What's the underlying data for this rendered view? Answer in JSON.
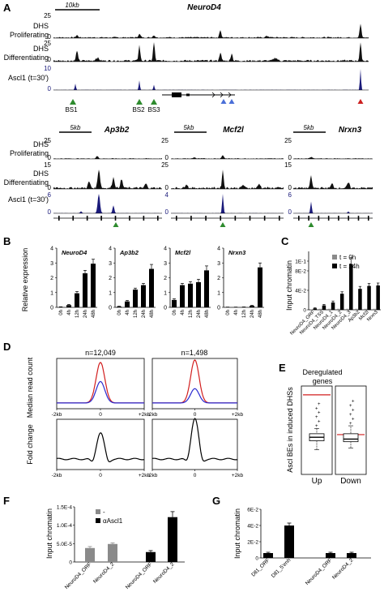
{
  "panels": {
    "A": {
      "letter": "A",
      "top": {
        "gene": "NeuroD4",
        "scalebar": "10kb",
        "tracks": [
          {
            "label1": "DHS",
            "label2": "Proliferating",
            "max": "25",
            "min": "0"
          },
          {
            "label1": "DHS",
            "label2": "Differentiating",
            "max": "25",
            "min": "0"
          },
          {
            "label1": "Ascl1 (t=30')",
            "label2": "",
            "max": "10",
            "min": "0"
          }
        ],
        "sites": [
          "BS1",
          "BS2",
          "BS3"
        ]
      },
      "bottom": [
        {
          "gene": "Ap3b2",
          "scalebar": "5kb",
          "maxes": [
            "25",
            "15",
            "6"
          ]
        },
        {
          "gene": "Mcf2l",
          "scalebar": "5kb",
          "maxes": [
            "25",
            "25",
            "4"
          ]
        },
        {
          "gene": "Nrxn3",
          "scalebar": "5kb",
          "maxes": [
            "25",
            "15",
            "6"
          ]
        }
      ],
      "bottom_labels": [
        {
          "label1": "DHS",
          "label2": "Proliferating"
        },
        {
          "label1": "DHS",
          "label2": "Differentiating"
        },
        {
          "label1": "Ascl1 (t=30')",
          "label2": ""
        }
      ],
      "zero": "0"
    },
    "B": {
      "letter": "B",
      "ylabel": "Relative expression",
      "time_labels": [
        "0h",
        "4h",
        "12h",
        "24h",
        "48h"
      ]
    },
    "C": {
      "letter": "C",
      "ylabel": "Input  chromatin"
    },
    "D": {
      "letter": "D",
      "ylabel_top": "Median read count",
      "ylabel_bottom": "Fold change",
      "n_labels": [
        "n=12,049",
        "n=1,498"
      ],
      "x_ticks": [
        "-2kb",
        "0",
        "+2kb"
      ]
    },
    "E": {
      "letter": "E",
      "title": [
        "Deregulated",
        "genes"
      ],
      "ylabel": "Ascl BEs in induced DHSs",
      "categories": [
        "Up",
        "Down"
      ]
    },
    "F": {
      "letter": "F",
      "ylabel": "Input  chromatin"
    },
    "G": {
      "letter": "G",
      "ylabel": "Input  chromatin"
    }
  },
  "colors": {
    "track": "#111111",
    "ascl_track": "#1a1a7a",
    "gray_bar": "#8a8a8a",
    "black_bar": "#000000",
    "red": "#d21f1f",
    "blue": "#2a2ad0",
    "green_marker": "#2e8b2e",
    "blue_marker": "#4a6fd8",
    "red_marker": "#cc2020"
  },
  "chart_data": [
    {
      "panel": "B",
      "type": "bar",
      "subplots": [
        {
          "name": "NeuroD4",
          "yticks": [
            "0",
            "1",
            "2",
            "3",
            "4"
          ],
          "ylim": [
            0,
            4
          ],
          "categories": [
            "0h",
            "4h",
            "12h",
            "24h",
            "48h"
          ],
          "values": [
            0.02,
            0.15,
            0.95,
            2.3,
            2.95
          ],
          "errors": [
            0.02,
            0.05,
            0.12,
            0.2,
            0.3
          ]
        },
        {
          "name": "Ap3b2",
          "yticks": [
            "0",
            "1",
            "2",
            "3",
            "4"
          ],
          "ylim": [
            0,
            4
          ],
          "categories": [
            "0h",
            "4h",
            "12h",
            "24h",
            "48h"
          ],
          "values": [
            0.05,
            0.4,
            1.2,
            1.5,
            2.6
          ],
          "errors": [
            0.03,
            0.07,
            0.1,
            0.12,
            0.3
          ]
        },
        {
          "name": "Mcf2l",
          "yticks": [
            "0",
            "1",
            "2",
            "3",
            "4"
          ],
          "ylim": [
            0,
            4
          ],
          "categories": [
            "0h",
            "4h",
            "12h",
            "24h",
            "48h"
          ],
          "values": [
            0.5,
            1.5,
            1.6,
            1.7,
            2.5
          ],
          "errors": [
            0.08,
            0.12,
            0.14,
            0.2,
            0.3
          ]
        },
        {
          "name": "Nrxn3",
          "yticks": [
            "0",
            "1",
            "2",
            "3",
            "4"
          ],
          "ylim": [
            0,
            4
          ],
          "categories": [
            "0h",
            "4h",
            "12h",
            "24h",
            "48h"
          ],
          "values": [
            0.01,
            0.01,
            0.02,
            0.1,
            2.7
          ],
          "errors": [
            0.01,
            0.01,
            0.01,
            0.04,
            0.3
          ]
        }
      ]
    },
    {
      "panel": "C",
      "type": "bar",
      "yticks": [
        "0",
        "4E-2",
        "8E-2",
        "1E-1"
      ],
      "ylim": [
        0,
        0.12
      ],
      "categories": [
        "NeuroD4_ORF",
        "NeuroD4_TSS",
        "NeuroD4_1",
        "NeuroD4_2",
        "NeuroD4_3",
        "Ap3b2",
        "Mcf2l",
        "Nrxn3"
      ],
      "series": [
        {
          "name": "t = 0h",
          "values": [
            0.001,
            0.002,
            0.002,
            0.002,
            0.002,
            0.002,
            0.002,
            0.002
          ]
        },
        {
          "name": "t = 24h",
          "values": [
            0.003,
            0.009,
            0.015,
            0.033,
            0.094,
            0.043,
            0.049,
            0.05
          ],
          "errors": [
            0.001,
            0.002,
            0.003,
            0.004,
            0.013,
            0.005,
            0.005,
            0.005
          ]
        }
      ],
      "legend": "top-right"
    },
    {
      "panel": "D",
      "type": "line",
      "subplots": [
        {
          "n": "n=12,049",
          "x": [
            -2,
            2
          ],
          "series": [
            {
              "color": "red",
              "shape": "peak",
              "peak": 0.85
            },
            {
              "color": "blue",
              "shape": "peak",
              "peak": 0.45
            }
          ]
        },
        {
          "n": "n=1,498",
          "x": [
            -2,
            2
          ],
          "series": [
            {
              "color": "red",
              "shape": "peak",
              "peak": 0.9
            },
            {
              "color": "blue",
              "shape": "peak",
              "peak": 0.3
            }
          ]
        },
        {
          "x": [
            -2,
            2
          ],
          "series": [
            {
              "color": "black",
              "shape": "fold",
              "peak": 0.55
            }
          ]
        },
        {
          "x": [
            -2,
            2
          ],
          "series": [
            {
              "color": "black",
              "shape": "fold",
              "peak": 0.85
            }
          ]
        }
      ]
    },
    {
      "panel": "E",
      "type": "box",
      "categories": [
        "Up",
        "Down"
      ],
      "boxes": [
        {
          "q1": 0.38,
          "median": 0.42,
          "q3": 0.46,
          "whisker_low": 0.28,
          "whisker_high": 0.52,
          "red_line": 0.9
        },
        {
          "q1": 0.37,
          "median": 0.4,
          "q3": 0.46,
          "whisker_low": 0.3,
          "whisker_high": 0.55,
          "red_line": 0.45
        }
      ]
    },
    {
      "panel": "F",
      "type": "bar",
      "yticks": [
        "0",
        "5.0E-5",
        "1.0E-4",
        "1.5E-4"
      ],
      "ylim": [
        0,
        0.00015
      ],
      "categories": [
        "NeuroD4_ORF",
        "NeuroD4_2",
        "NeuroD4_ORF",
        "NeuroD4_2"
      ],
      "series": [
        {
          "name": "-",
          "values": [
            3.8e-05,
            4.9e-05,
            null,
            null
          ],
          "errors": [
            4e-06,
            3e-06,
            null,
            null
          ]
        },
        {
          "name": "αAscl1",
          "values": [
            null,
            null,
            2.7e-05,
            0.000122
          ],
          "errors": [
            null,
            null,
            4e-06,
            1.5e-05
          ]
        }
      ],
      "legend": "top-left"
    },
    {
      "panel": "G",
      "type": "bar",
      "yticks": [
        "0",
        "2E-2",
        "4E-2",
        "6E-2"
      ],
      "ylim": [
        0,
        0.06
      ],
      "categories": [
        "Dll1_ORF",
        "Dll1_5'enh",
        "NeuroD4_ORF",
        "NeuroD4_2"
      ],
      "values": [
        0.006,
        0.04,
        0.006,
        0.006
      ],
      "errors": [
        0.001,
        0.003,
        0.001,
        0.001
      ]
    }
  ]
}
